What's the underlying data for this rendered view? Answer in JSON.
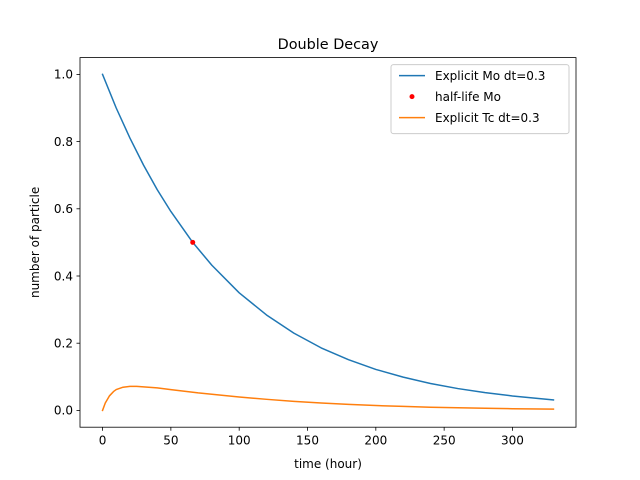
{
  "chart_data": {
    "type": "line",
    "title": "Double Decay",
    "xlabel": "time (hour)",
    "ylabel": "number of particle",
    "xlim": [
      -16.5,
      346.5
    ],
    "ylim": [
      -0.05,
      1.05
    ],
    "xticks": [
      0,
      50,
      100,
      150,
      200,
      250,
      300
    ],
    "yticks": [
      0.0,
      0.2,
      0.4,
      0.6,
      0.8,
      1.0
    ],
    "xtick_labels": [
      "0",
      "50",
      "100",
      "150",
      "200",
      "250",
      "300"
    ],
    "ytick_labels": [
      "0.0",
      "0.2",
      "0.4",
      "0.6",
      "0.8",
      "1.0"
    ],
    "grid": false,
    "legend_position": "top-right",
    "series": [
      {
        "name": "Explicit Mo dt=0.3",
        "kind": "line",
        "color": "#1f77b4",
        "x": [
          0,
          10,
          20,
          30,
          40,
          50,
          66,
          80,
          100,
          120,
          140,
          160,
          180,
          200,
          220,
          240,
          260,
          280,
          300,
          320,
          330
        ],
        "y": [
          1.0,
          0.9,
          0.811,
          0.73,
          0.657,
          0.592,
          0.5,
          0.432,
          0.35,
          0.284,
          0.23,
          0.186,
          0.151,
          0.122,
          0.099,
          0.08,
          0.065,
          0.053,
          0.043,
          0.035,
          0.031
        ]
      },
      {
        "name": "half-life Mo",
        "kind": "point",
        "color": "#ff0000",
        "x": [
          66
        ],
        "y": [
          0.5
        ]
      },
      {
        "name": "Explicit Tc dt=0.3",
        "kind": "line",
        "color": "#ff7f0e",
        "x": [
          0,
          2,
          5,
          8,
          10,
          15,
          20,
          25,
          30,
          40,
          50,
          60,
          70,
          80,
          100,
          120,
          140,
          160,
          180,
          200,
          220,
          240,
          260,
          280,
          300,
          320,
          330
        ],
        "y": [
          0.0,
          0.022,
          0.043,
          0.056,
          0.062,
          0.069,
          0.0715,
          0.0715,
          0.07,
          0.067,
          0.062,
          0.057,
          0.052,
          0.048,
          0.04,
          0.033,
          0.027,
          0.022,
          0.018,
          0.0145,
          0.012,
          0.0095,
          0.0078,
          0.0063,
          0.0051,
          0.0041,
          0.0037
        ]
      }
    ]
  }
}
